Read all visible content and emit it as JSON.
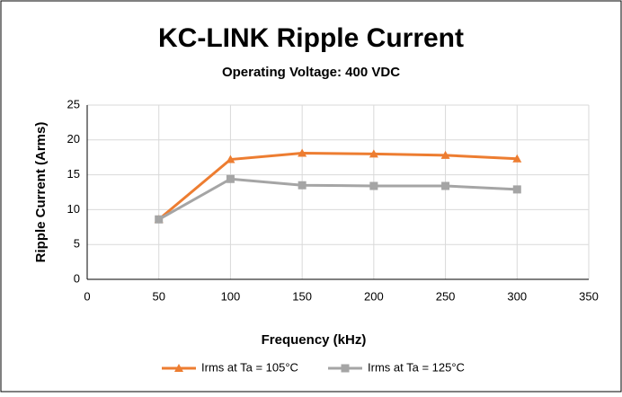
{
  "chart_data": {
    "type": "line",
    "title": "KC-LINK Ripple Current",
    "subtitle": "Operating Voltage: 400 VDC",
    "xlabel": "Frequency (kHz)",
    "ylabel": "Ripple Current (Arms)",
    "x": [
      50,
      100,
      150,
      200,
      250,
      300
    ],
    "series": [
      {
        "name": "Irms at Ta = 105°C",
        "color": "#ed7d31",
        "marker": "triangle",
        "values": [
          8.6,
          17.2,
          18.1,
          18.0,
          17.8,
          17.3
        ]
      },
      {
        "name": "Irms at Ta = 125°C",
        "color": "#a5a5a5",
        "marker": "square",
        "values": [
          8.6,
          14.4,
          13.5,
          13.4,
          13.4,
          12.9
        ]
      }
    ],
    "xlim": [
      0,
      350
    ],
    "xticks": [
      0,
      50,
      100,
      150,
      200,
      250,
      300,
      350
    ],
    "ylim": [
      0,
      25
    ],
    "yticks": [
      0,
      5,
      10,
      15,
      20,
      25
    ],
    "grid": true,
    "legend": "bottom"
  }
}
